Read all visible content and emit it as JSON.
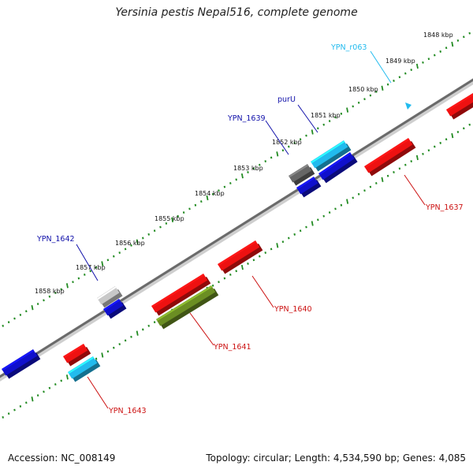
{
  "title": "Yersinia pestis Nepal516, complete genome",
  "footer": {
    "accession": "Accession: NC_008149",
    "summary": "Topology: circular; Length: 4,534,590 bp; Genes: 4,085"
  },
  "ruler_labels": [
    "1848 kbp",
    "1849 kbp",
    "1850 kbp",
    "1851 kbp",
    "1852 kbp",
    "1853 kbp",
    "1854 kbp",
    "1855 kbp",
    "1856 kbp",
    "1857 kbp",
    "1858 kbp"
  ],
  "colors": {
    "red": "#ee1111",
    "blue": "#1010cc",
    "cyan": "#22bbee",
    "gray": "#666666",
    "lightgray": "#c8c8c8",
    "olive": "#6b8e23",
    "dots": "#228b22"
  },
  "gene_labels": [
    {
      "id": "YPN_r063",
      "color": "#22bbee"
    },
    {
      "id": "purU",
      "color": "#1010aa"
    },
    {
      "id": "YPN_1639",
      "color": "#1010aa"
    },
    {
      "id": "YPN_1642",
      "color": "#1010aa"
    },
    {
      "id": "YPN_1637",
      "color": "#cc1111"
    },
    {
      "id": "YPN_1640",
      "color": "#cc1111"
    },
    {
      "id": "YPN_1641",
      "color": "#cc1111"
    },
    {
      "id": "YPN_1643",
      "color": "#cc1111"
    }
  ]
}
